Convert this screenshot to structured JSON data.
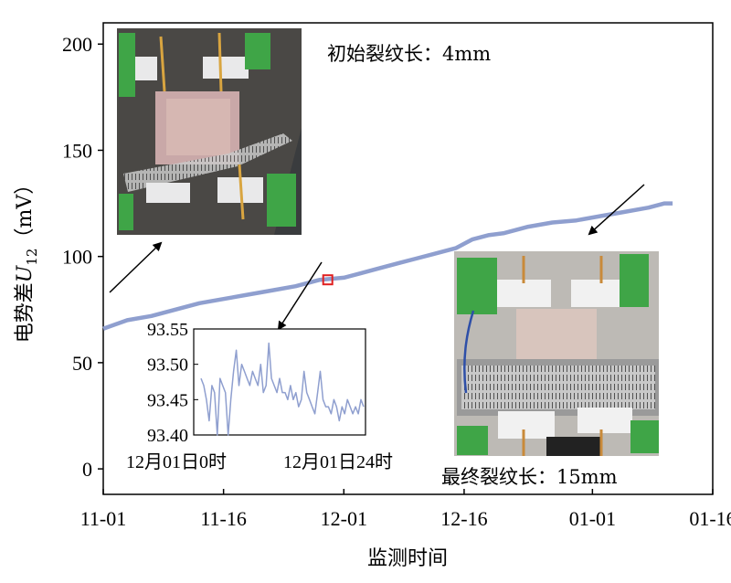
{
  "chart_data": {
    "type": "line",
    "xlabel": "监测时间",
    "ylabel_main": "电势差",
    "ylabel_var": "U",
    "ylabel_sub": "12",
    "ylabel_unit": "（mV）",
    "x_ticks": [
      "11-01",
      "11-16",
      "12-01",
      "12-16",
      "01-01",
      "01-16"
    ],
    "x_range": [
      "11-01",
      "01-16"
    ],
    "ylim": [
      -12,
      210
    ],
    "y_ticks": [
      0,
      50,
      100,
      150,
      200
    ],
    "series": [
      {
        "color": "#8f9fcf",
        "points": [
          [
            "11-01",
            66
          ],
          [
            "11-04",
            70
          ],
          [
            "11-07",
            72
          ],
          [
            "11-10",
            75
          ],
          [
            "11-13",
            78
          ],
          [
            "11-16",
            80
          ],
          [
            "11-19",
            82
          ],
          [
            "11-22",
            84
          ],
          [
            "11-25",
            86
          ],
          [
            "11-28",
            89
          ],
          [
            "12-01",
            90
          ],
          [
            "12-03",
            92
          ],
          [
            "12-05",
            94
          ],
          [
            "12-08",
            97
          ],
          [
            "12-10",
            99
          ],
          [
            "12-12",
            101
          ],
          [
            "12-15",
            104
          ],
          [
            "12-17",
            108
          ],
          [
            "12-19",
            110
          ],
          [
            "12-21",
            111
          ],
          [
            "12-24",
            114
          ],
          [
            "12-27",
            116
          ],
          [
            "12-30",
            117
          ],
          [
            "01-02",
            119
          ],
          [
            "01-05",
            121
          ],
          [
            "01-08",
            123
          ],
          [
            "01-10",
            125
          ],
          [
            "01-11",
            125
          ]
        ]
      }
    ],
    "marker": {
      "x": "11-29",
      "y": 89
    },
    "inset": {
      "type": "line",
      "x_ticks": [
        "12月01日0时",
        "12月01日24时"
      ],
      "ylim": [
        93.4,
        93.55
      ],
      "y_ticks": [
        "93.40",
        "93.45",
        "93.50",
        "93.55"
      ],
      "color": "#8f9fcf",
      "values": [
        93.48,
        93.47,
        93.45,
        93.42,
        93.47,
        93.46,
        93.4,
        93.48,
        93.47,
        93.46,
        93.4,
        93.45,
        93.49,
        93.52,
        93.47,
        93.5,
        93.49,
        93.48,
        93.47,
        93.49,
        93.48,
        93.47,
        93.5,
        93.46,
        93.47,
        93.53,
        93.48,
        93.47,
        93.46,
        93.48,
        93.46,
        93.46,
        93.45,
        93.47,
        93.45,
        93.46,
        93.44,
        93.45,
        93.49,
        93.46,
        93.45,
        93.44,
        93.43,
        93.46,
        93.49,
        93.45,
        93.44,
        93.44,
        93.43,
        93.45,
        93.44,
        93.42,
        93.44,
        93.43,
        93.45,
        93.44,
        93.43,
        93.44,
        93.43,
        93.45,
        93.44
      ]
    },
    "annotations": [
      {
        "text": "初始裂纹长：4mm"
      },
      {
        "text": "最终裂纹长：15mm"
      }
    ]
  }
}
